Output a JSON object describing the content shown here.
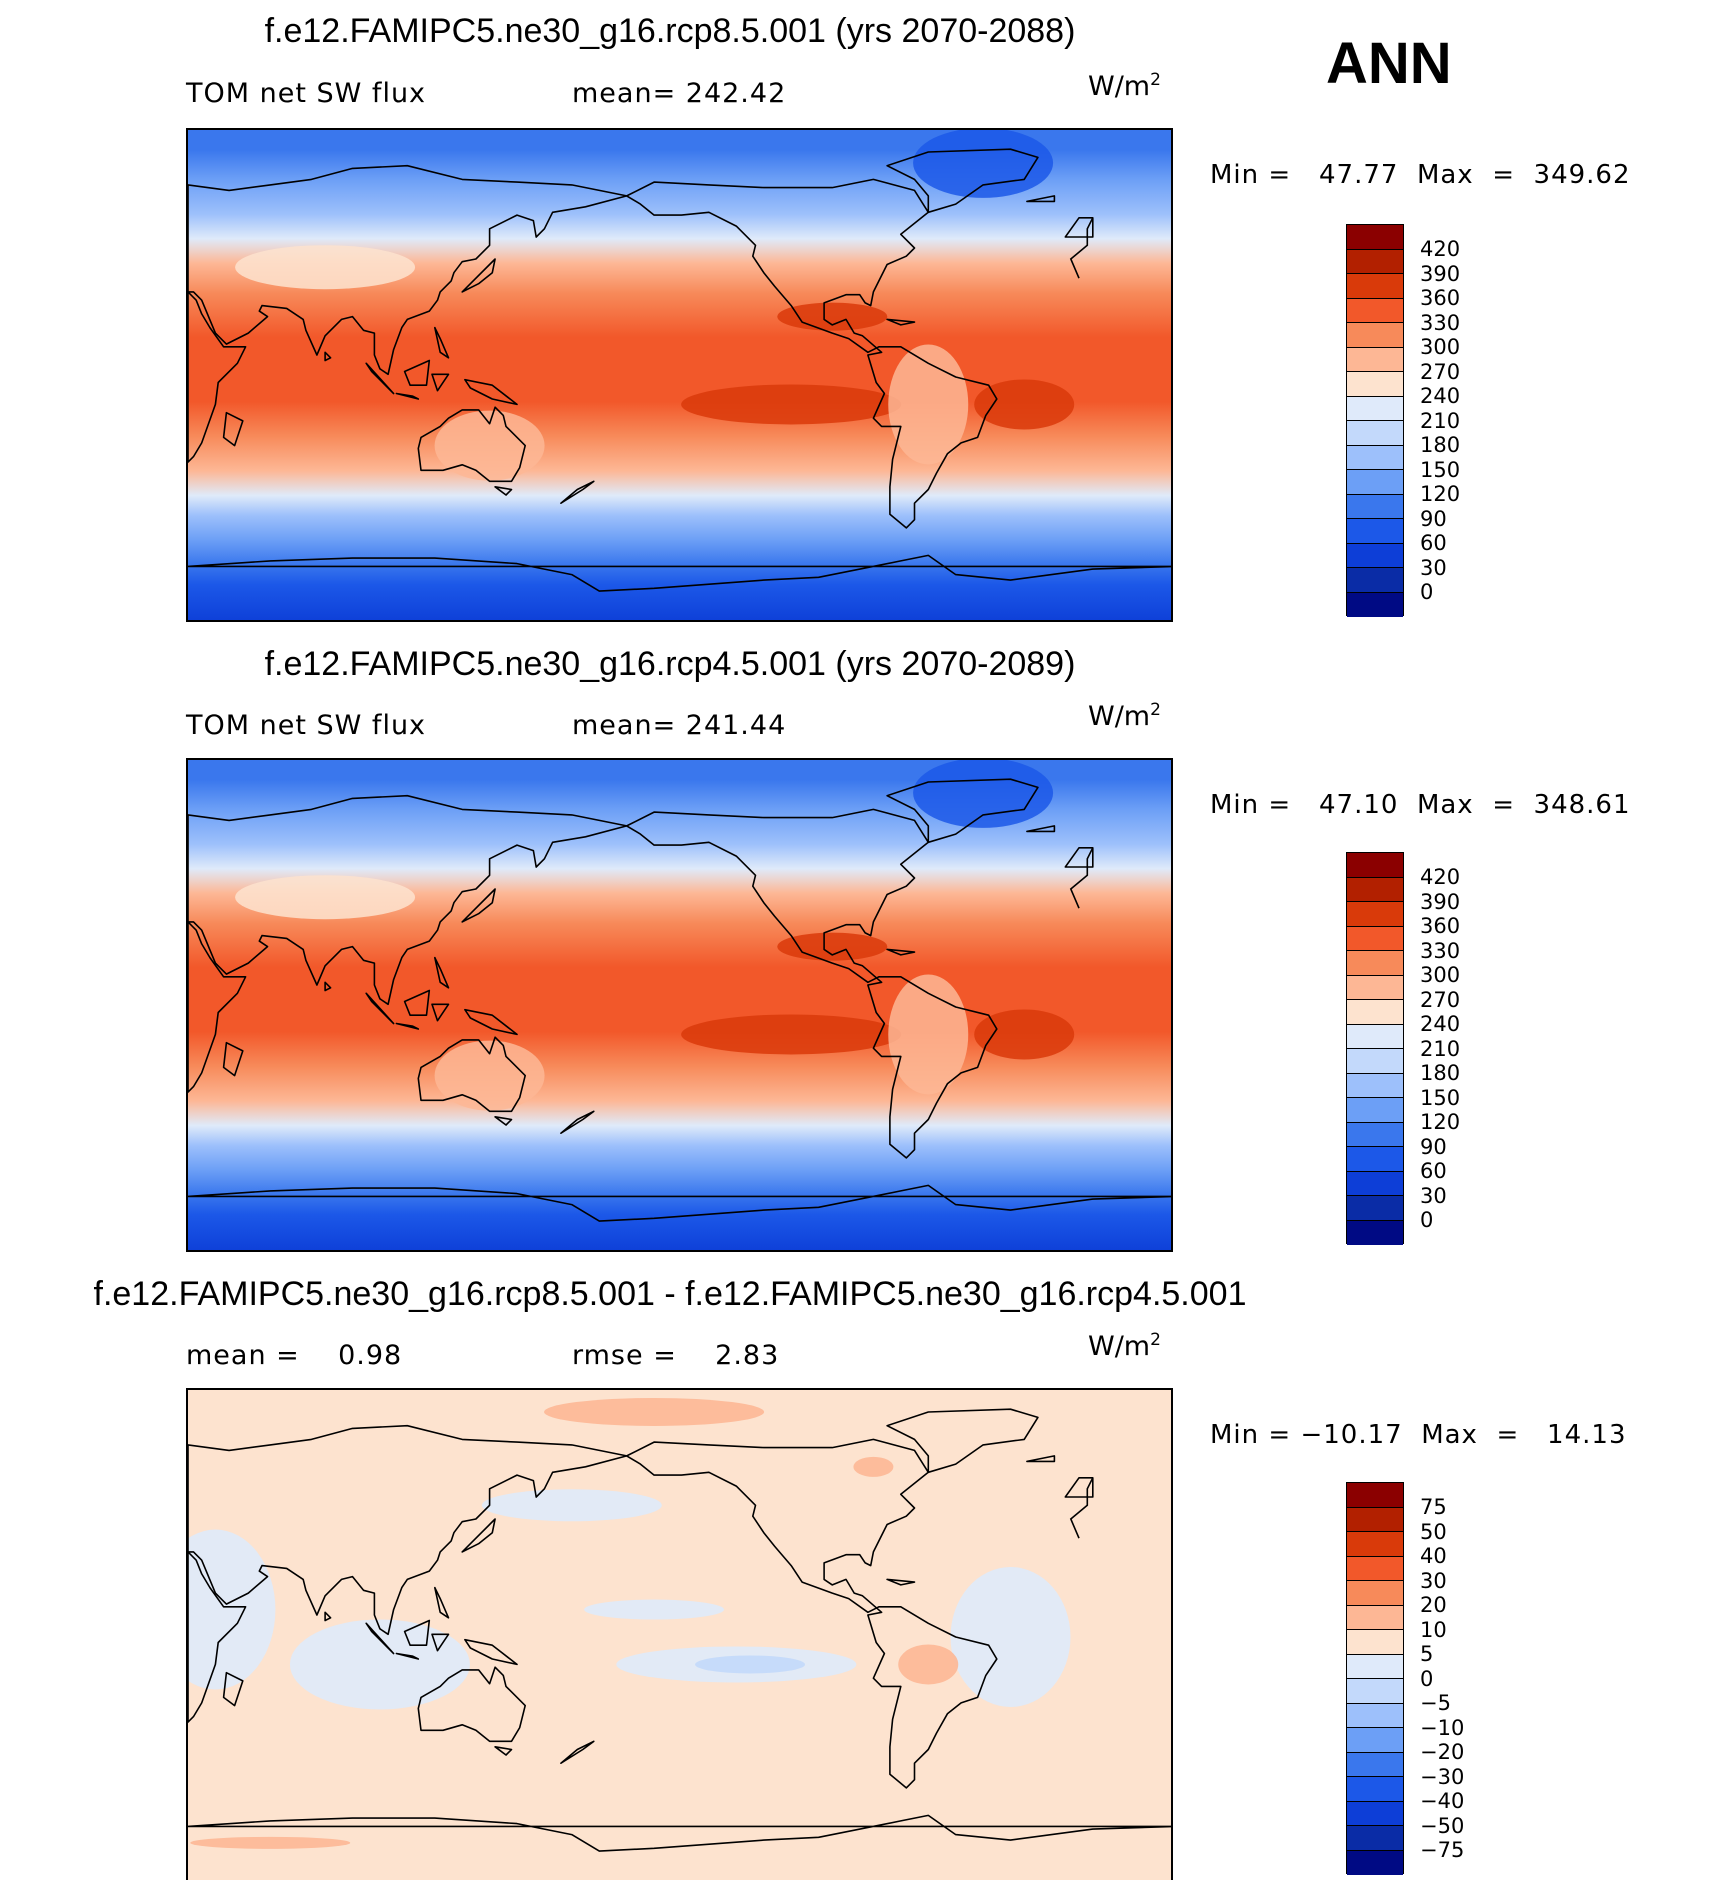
{
  "season_label": "ANN",
  "panels": [
    {
      "title": "f.e12.FAMIPC5.ne30_g16.rcp8.5.001 (yrs 2070-2088)",
      "left_stat": "TOM net SW flux",
      "right_stat": "mean= 242.42",
      "unit": "W/m",
      "unit_exp": "2",
      "minmax": "Min =   47.77  Max  =  349.62",
      "map_type": "absolute",
      "colorbar": {
        "colors": [
          "#8b0000",
          "#b22000",
          "#d93a0a",
          "#f2582a",
          "#f78a5a",
          "#fdb795",
          "#fde3cf",
          "#dfeafa",
          "#c3d9fb",
          "#9dc0fb",
          "#6c9ff6",
          "#3a77ed",
          "#1c58e8",
          "#0d3ed7",
          "#0a2ca6",
          "#000a84"
        ],
        "labels": [
          "420",
          "390",
          "360",
          "330",
          "300",
          "270",
          "240",
          "210",
          "180",
          "150",
          "120",
          "90",
          "60",
          "30",
          "0"
        ]
      }
    },
    {
      "title": "f.e12.FAMIPC5.ne30_g16.rcp4.5.001 (yrs 2070-2089)",
      "left_stat": "TOM net SW flux",
      "right_stat": "mean= 241.44",
      "unit": "W/m",
      "unit_exp": "2",
      "minmax": "Min =   47.10  Max  =  348.61",
      "map_type": "absolute",
      "colorbar": {
        "colors": [
          "#8b0000",
          "#b22000",
          "#d93a0a",
          "#f2582a",
          "#f78a5a",
          "#fdb795",
          "#fde3cf",
          "#dfeafa",
          "#c3d9fb",
          "#9dc0fb",
          "#6c9ff6",
          "#3a77ed",
          "#1c58e8",
          "#0d3ed7",
          "#0a2ca6",
          "#000a84"
        ],
        "labels": [
          "420",
          "390",
          "360",
          "330",
          "300",
          "270",
          "240",
          "210",
          "180",
          "150",
          "120",
          "90",
          "60",
          "30",
          "0"
        ]
      }
    },
    {
      "title": "f.e12.FAMIPC5.ne30_g16.rcp8.5.001 - f.e12.FAMIPC5.ne30_g16.rcp4.5.001",
      "left_stat": "mean =    0.98",
      "right_stat": "rmse =    2.83",
      "unit": "W/m",
      "unit_exp": "2",
      "minmax": "Min = −10.17  Max  =   14.13",
      "map_type": "difference",
      "colorbar": {
        "colors": [
          "#8b0000",
          "#b22000",
          "#d93a0a",
          "#f2582a",
          "#f78a5a",
          "#fdb795",
          "#fde3cf",
          "#dfeafa",
          "#c3d9fb",
          "#9dc0fb",
          "#6c9ff6",
          "#3a77ed",
          "#1c58e8",
          "#0d3ed7",
          "#0a2ca6",
          "#000a84"
        ],
        "labels": [
          "75",
          "50",
          "40",
          "30",
          "20",
          "10",
          "5",
          "0",
          "−5",
          "−10",
          "−20",
          "−30",
          "−40",
          "−50",
          "−75"
        ]
      }
    }
  ],
  "chart_data": [
    {
      "type": "heatmap",
      "title": "f.e12.FAMIPC5.ne30_g16.rcp8.5.001 (yrs 2070-2088)",
      "variable": "TOM net SW flux",
      "units": "W/m2",
      "mean": 242.42,
      "min": 47.77,
      "max": 349.62,
      "levels": [
        0,
        30,
        60,
        90,
        120,
        150,
        180,
        210,
        240,
        270,
        300,
        330,
        360,
        390,
        420
      ]
    },
    {
      "type": "heatmap",
      "title": "f.e12.FAMIPC5.ne30_g16.rcp4.5.001 (yrs 2070-2089)",
      "variable": "TOM net SW flux",
      "units": "W/m2",
      "mean": 241.44,
      "min": 47.1,
      "max": 348.61,
      "levels": [
        0,
        30,
        60,
        90,
        120,
        150,
        180,
        210,
        240,
        270,
        300,
        330,
        360,
        390,
        420
      ]
    },
    {
      "type": "heatmap",
      "title": "f.e12.FAMIPC5.ne30_g16.rcp8.5.001 - f.e12.FAMIPC5.ne30_g16.rcp4.5.001",
      "units": "W/m2",
      "mean": 0.98,
      "rmse": 2.83,
      "min": -10.17,
      "max": 14.13,
      "levels": [
        -75,
        -50,
        -40,
        -30,
        -20,
        -10,
        -5,
        0,
        5,
        10,
        20,
        30,
        40,
        50,
        75
      ]
    }
  ]
}
